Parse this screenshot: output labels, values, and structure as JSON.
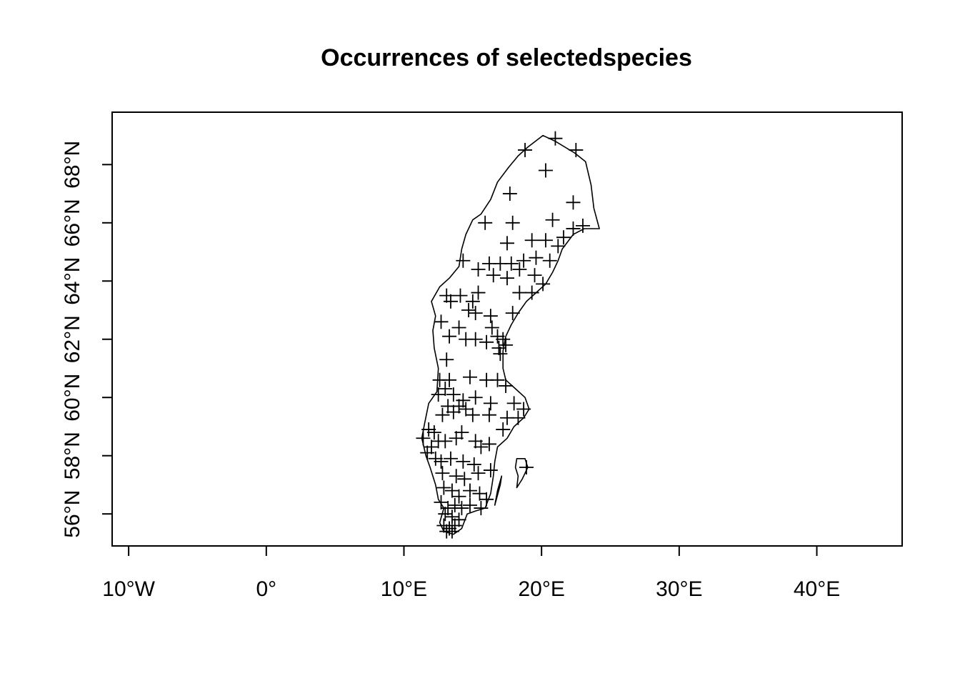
{
  "title": "Occurrences of selectedspecies",
  "chart_data": {
    "type": "scatter",
    "title": "Occurrences of selectedspecies",
    "marker": "plus",
    "xlim": [
      -11.2,
      46.2
    ],
    "ylim": [
      54.9,
      69.8
    ],
    "x_ticks": [
      {
        "value": -10,
        "label": "10°W"
      },
      {
        "value": 0,
        "label": "0°"
      },
      {
        "value": 10,
        "label": "10°E"
      },
      {
        "value": 20,
        "label": "20°E"
      },
      {
        "value": 30,
        "label": "30°E"
      },
      {
        "value": 40,
        "label": "40°E"
      }
    ],
    "y_ticks": [
      {
        "value": 56,
        "label": "56°N"
      },
      {
        "value": 58,
        "label": "58°N"
      },
      {
        "value": 60,
        "label": "60°N"
      },
      {
        "value": 62,
        "label": "62°N"
      },
      {
        "value": 64,
        "label": "64°N"
      },
      {
        "value": 66,
        "label": "66°N"
      },
      {
        "value": 68,
        "label": "68°N"
      }
    ],
    "outline": [
      [
        19.0,
        68.6
      ],
      [
        20.1,
        69.0
      ],
      [
        21.0,
        68.8
      ],
      [
        22.4,
        68.4
      ],
      [
        23.2,
        68.1
      ],
      [
        23.6,
        67.3
      ],
      [
        23.8,
        66.5
      ],
      [
        24.2,
        65.8
      ],
      [
        23.1,
        65.8
      ],
      [
        22.3,
        65.6
      ],
      [
        21.5,
        65.1
      ],
      [
        21.2,
        64.7
      ],
      [
        20.8,
        64.3
      ],
      [
        20.3,
        63.9
      ],
      [
        19.6,
        63.6
      ],
      [
        18.9,
        63.3
      ],
      [
        18.3,
        62.9
      ],
      [
        17.8,
        62.5
      ],
      [
        17.4,
        62.1
      ],
      [
        17.2,
        61.6
      ],
      [
        17.2,
        61.0
      ],
      [
        17.4,
        60.6
      ],
      [
        18.1,
        60.3
      ],
      [
        18.8,
        60.0
      ],
      [
        19.1,
        59.6
      ],
      [
        18.7,
        59.3
      ],
      [
        18.0,
        59.0
      ],
      [
        17.5,
        58.6
      ],
      [
        16.8,
        58.3
      ],
      [
        16.6,
        57.8
      ],
      [
        16.5,
        57.3
      ],
      [
        16.3,
        56.7
      ],
      [
        15.9,
        56.2
      ],
      [
        15.2,
        56.1
      ],
      [
        14.6,
        56.0
      ],
      [
        14.2,
        55.5
      ],
      [
        13.6,
        55.3
      ],
      [
        12.9,
        55.4
      ],
      [
        12.6,
        55.7
      ],
      [
        12.9,
        56.2
      ],
      [
        12.5,
        56.5
      ],
      [
        12.3,
        57.0
      ],
      [
        11.9,
        57.6
      ],
      [
        11.6,
        58.0
      ],
      [
        11.3,
        58.6
      ],
      [
        11.5,
        59.1
      ],
      [
        11.8,
        59.8
      ],
      [
        12.4,
        60.2
      ],
      [
        12.5,
        61.0
      ],
      [
        12.2,
        61.7
      ],
      [
        12.1,
        62.3
      ],
      [
        12.3,
        62.8
      ],
      [
        12.0,
        63.3
      ],
      [
        12.6,
        63.8
      ],
      [
        13.3,
        64.1
      ],
      [
        14.0,
        64.5
      ],
      [
        14.2,
        65.1
      ],
      [
        14.5,
        65.6
      ],
      [
        15.0,
        66.1
      ],
      [
        15.6,
        66.3
      ],
      [
        16.3,
        66.8
      ],
      [
        16.8,
        67.4
      ],
      [
        17.6,
        67.9
      ],
      [
        18.3,
        68.3
      ],
      [
        19.0,
        68.6
      ]
    ],
    "gotland_outline": [
      [
        18.2,
        57.9
      ],
      [
        18.8,
        57.9
      ],
      [
        19.0,
        57.6
      ],
      [
        18.6,
        57.2
      ],
      [
        18.2,
        56.9
      ],
      [
        18.3,
        57.3
      ],
      [
        18.1,
        57.6
      ],
      [
        18.2,
        57.9
      ]
    ],
    "oland_outline": [
      [
        16.6,
        56.3
      ],
      [
        16.8,
        56.8
      ],
      [
        17.1,
        57.3
      ],
      [
        17.0,
        57.0
      ],
      [
        16.6,
        56.3
      ]
    ],
    "points": [
      [
        21.0,
        68.9
      ],
      [
        22.5,
        68.5
      ],
      [
        18.8,
        68.5
      ],
      [
        20.3,
        67.8
      ],
      [
        17.7,
        67.0
      ],
      [
        22.3,
        66.7
      ],
      [
        15.9,
        66.0
      ],
      [
        17.9,
        66.0
      ],
      [
        20.8,
        66.1
      ],
      [
        22.3,
        65.8
      ],
      [
        23.0,
        65.9
      ],
      [
        21.6,
        65.5
      ],
      [
        21.2,
        65.2
      ],
      [
        17.5,
        65.3
      ],
      [
        19.3,
        65.4
      ],
      [
        20.3,
        65.4
      ],
      [
        14.3,
        64.7
      ],
      [
        16.2,
        64.6
      ],
      [
        17.0,
        64.6
      ],
      [
        17.8,
        64.6
      ],
      [
        18.7,
        64.7
      ],
      [
        19.6,
        64.8
      ],
      [
        20.6,
        64.7
      ],
      [
        16.5,
        64.2
      ],
      [
        15.4,
        64.4
      ],
      [
        17.5,
        64.1
      ],
      [
        18.4,
        64.4
      ],
      [
        19.5,
        64.2
      ],
      [
        20.1,
        63.9
      ],
      [
        19.3,
        63.6
      ],
      [
        18.4,
        63.6
      ],
      [
        13.1,
        63.5
      ],
      [
        13.4,
        63.3
      ],
      [
        14.1,
        63.5
      ],
      [
        15.4,
        63.6
      ],
      [
        15.0,
        63.3
      ],
      [
        14.7,
        63.0
      ],
      [
        15.2,
        62.9
      ],
      [
        16.3,
        62.8
      ],
      [
        17.9,
        62.9
      ],
      [
        12.7,
        62.6
      ],
      [
        14.0,
        62.4
      ],
      [
        16.4,
        62.4
      ],
      [
        13.3,
        62.1
      ],
      [
        14.5,
        62.0
      ],
      [
        15.2,
        62.0
      ],
      [
        16.0,
        61.9
      ],
      [
        16.8,
        62.1
      ],
      [
        17.2,
        62.0
      ],
      [
        16.9,
        61.7
      ],
      [
        17.4,
        61.8
      ],
      [
        17.0,
        61.5
      ],
      [
        13.1,
        61.3
      ],
      [
        12.6,
        60.6
      ],
      [
        13.3,
        60.6
      ],
      [
        14.8,
        60.7
      ],
      [
        16.0,
        60.6
      ],
      [
        16.8,
        60.6
      ],
      [
        17.4,
        60.4
      ],
      [
        12.5,
        60.1
      ],
      [
        13.0,
        60.3
      ],
      [
        13.6,
        60.1
      ],
      [
        14.3,
        59.9
      ],
      [
        15.2,
        60.0
      ],
      [
        16.3,
        59.8
      ],
      [
        18.0,
        59.8
      ],
      [
        18.7,
        59.6
      ],
      [
        12.8,
        59.4
      ],
      [
        13.2,
        59.7
      ],
      [
        13.6,
        59.5
      ],
      [
        14.0,
        59.7
      ],
      [
        14.5,
        59.6
      ],
      [
        15.0,
        59.4
      ],
      [
        16.2,
        59.4
      ],
      [
        17.5,
        59.3
      ],
      [
        18.3,
        59.3
      ],
      [
        17.2,
        58.9
      ],
      [
        11.8,
        58.9
      ],
      [
        12.2,
        58.8
      ],
      [
        11.4,
        58.6
      ],
      [
        12.0,
        58.3
      ],
      [
        11.7,
        58.1
      ],
      [
        12.5,
        58.5
      ],
      [
        13.0,
        58.5
      ],
      [
        13.8,
        58.6
      ],
      [
        14.2,
        58.8
      ],
      [
        15.2,
        58.5
      ],
      [
        15.6,
        58.3
      ],
      [
        16.2,
        58.4
      ],
      [
        12.3,
        57.9
      ],
      [
        12.7,
        57.8
      ],
      [
        13.4,
        57.9
      ],
      [
        14.3,
        57.8
      ],
      [
        15.1,
        57.7
      ],
      [
        12.8,
        57.4
      ],
      [
        13.8,
        57.3
      ],
      [
        14.4,
        57.2
      ],
      [
        15.4,
        57.4
      ],
      [
        16.3,
        57.5
      ],
      [
        18.9,
        57.6
      ],
      [
        12.9,
        56.9
      ],
      [
        13.5,
        56.8
      ],
      [
        14.0,
        56.6
      ],
      [
        14.8,
        56.8
      ],
      [
        15.5,
        56.7
      ],
      [
        16.0,
        56.5
      ],
      [
        12.7,
        56.4
      ],
      [
        13.2,
        56.2
      ],
      [
        13.7,
        56.3
      ],
      [
        14.2,
        56.2
      ],
      [
        14.8,
        56.3
      ],
      [
        15.6,
        56.2
      ],
      [
        13.0,
        56.0
      ],
      [
        13.5,
        55.9
      ],
      [
        14.0,
        55.8
      ],
      [
        12.9,
        55.6
      ],
      [
        13.3,
        55.5
      ],
      [
        13.7,
        55.6
      ],
      [
        13.1,
        55.4
      ],
      [
        13.5,
        55.4
      ]
    ]
  }
}
